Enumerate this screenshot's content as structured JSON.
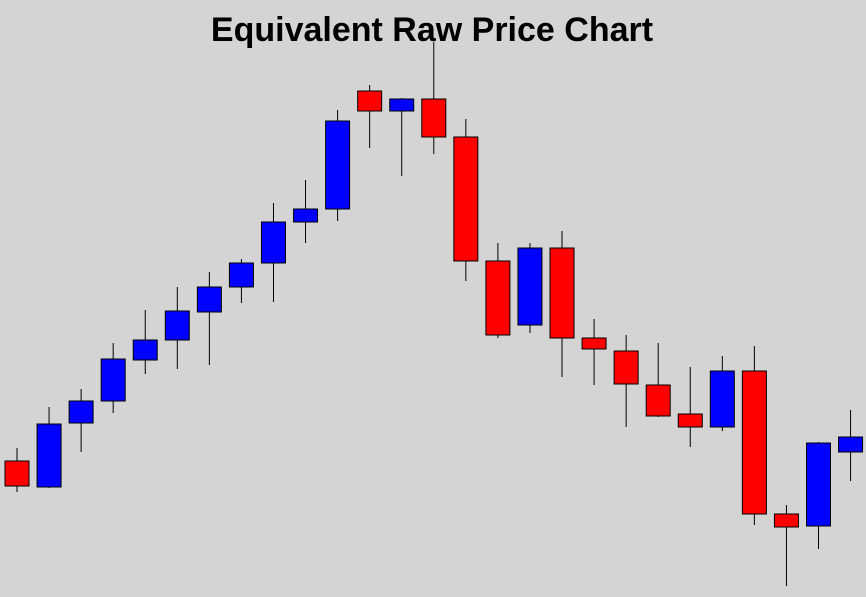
{
  "chart_data": {
    "type": "candlestick",
    "title": "Equivalent Raw Price Chart",
    "xlabel": "",
    "ylabel": "",
    "grid": false,
    "ylim": [
      0,
      597
    ],
    "colors": {
      "bull": "#0000ff",
      "bear": "#ff0000",
      "wick": "#000000",
      "background": "#d4d4d4"
    },
    "candles": [
      {
        "open": 136,
        "high": 149,
        "low": 105,
        "close": 111
      },
      {
        "open": 110,
        "high": 190,
        "low": 109,
        "close": 173
      },
      {
        "open": 174,
        "high": 208,
        "low": 145,
        "close": 196
      },
      {
        "open": 196,
        "high": 254,
        "low": 184,
        "close": 238
      },
      {
        "open": 237,
        "high": 287,
        "low": 223,
        "close": 257
      },
      {
        "open": 257,
        "high": 310,
        "low": 228,
        "close": 286
      },
      {
        "open": 285,
        "high": 325,
        "low": 232,
        "close": 310
      },
      {
        "open": 310,
        "high": 338,
        "low": 294,
        "close": 334
      },
      {
        "open": 334,
        "high": 394,
        "low": 295,
        "close": 375
      },
      {
        "open": 375,
        "high": 417,
        "low": 354,
        "close": 388
      },
      {
        "open": 388,
        "high": 487,
        "low": 376,
        "close": 476
      },
      {
        "open": 506,
        "high": 512,
        "low": 449,
        "close": 486
      },
      {
        "open": 486,
        "high": 499,
        "low": 421,
        "close": 498
      },
      {
        "open": 498,
        "high": 555,
        "low": 443,
        "close": 460
      },
      {
        "open": 460,
        "high": 478,
        "low": 316,
        "close": 336
      },
      {
        "open": 336,
        "high": 354,
        "low": 259,
        "close": 262
      },
      {
        "open": 272,
        "high": 354,
        "low": 264,
        "close": 349
      },
      {
        "open": 349,
        "high": 366,
        "low": 220,
        "close": 259
      },
      {
        "open": 259,
        "high": 278,
        "low": 212,
        "close": 248
      },
      {
        "open": 246,
        "high": 262,
        "low": 170,
        "close": 213
      },
      {
        "open": 212,
        "high": 254,
        "low": 180,
        "close": 181
      },
      {
        "open": 183,
        "high": 230,
        "low": 150,
        "close": 170
      },
      {
        "open": 170,
        "high": 241,
        "low": 166,
        "close": 226
      },
      {
        "open": 226,
        "high": 251,
        "low": 72,
        "close": 83
      },
      {
        "open": 83,
        "high": 92,
        "low": 11,
        "close": 70
      },
      {
        "open": 71,
        "high": 155,
        "low": 48,
        "close": 154
      },
      {
        "open": 145,
        "high": 187,
        "low": 116,
        "close": 160
      }
    ]
  }
}
